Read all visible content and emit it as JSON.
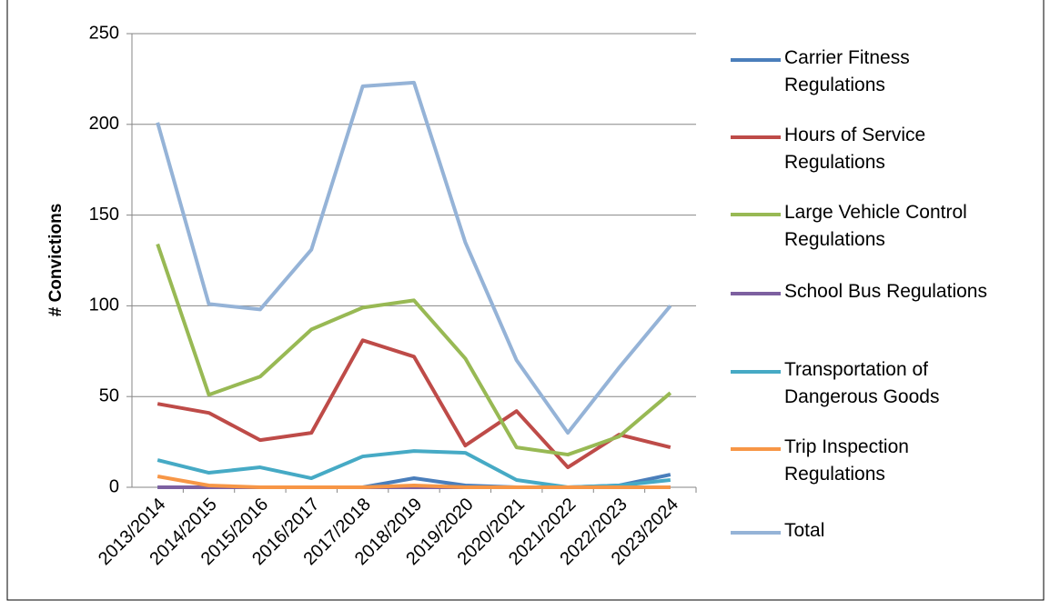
{
  "chart_data": {
    "type": "line",
    "y_label": "# Convictions",
    "categories": [
      "2013/2014",
      "2014/2015",
      "2015/2016",
      "2016/2017",
      "2017/2018",
      "2018/2019",
      "2019/2020",
      "2020/2021",
      "2021/2022",
      "2022/2023",
      "2023/2024"
    ],
    "series": [
      {
        "name": "Carrier Fitness Regulations",
        "color": "#4a7ebb",
        "values": [
          0,
          0,
          0,
          0,
          0,
          5,
          1,
          0,
          0,
          1,
          7
        ]
      },
      {
        "name": "Hours of Service Regulations",
        "color": "#be4b48",
        "values": [
          46,
          41,
          26,
          30,
          81,
          72,
          23,
          42,
          11,
          29,
          22
        ]
      },
      {
        "name": "Large Vehicle Control Regulations",
        "color": "#98b954",
        "values": [
          134,
          51,
          61,
          87,
          99,
          103,
          71,
          22,
          18,
          28,
          52
        ]
      },
      {
        "name": "School Bus Regulations",
        "color": "#7d60a0",
        "values": [
          0,
          0,
          0,
          0,
          0,
          0,
          0,
          0,
          0,
          0,
          0
        ]
      },
      {
        "name": "Transportation of Dangerous Goods",
        "color": "#46aac5",
        "values": [
          15,
          8,
          11,
          5,
          17,
          20,
          19,
          4,
          0,
          1,
          4
        ]
      },
      {
        "name": "Trip Inspection Regulations",
        "color": "#f79646",
        "values": [
          6,
          1,
          0,
          0,
          0,
          1,
          0,
          0,
          0,
          0,
          0
        ]
      },
      {
        "name": "Total",
        "color": "#95b3d7",
        "values": [
          201,
          101,
          98,
          131,
          221,
          223,
          135,
          70,
          30,
          66,
          100
        ]
      }
    ],
    "ylim": [
      0,
      250
    ],
    "yticks": [
      0,
      50,
      100,
      150,
      200,
      250
    ],
    "grid": true
  }
}
